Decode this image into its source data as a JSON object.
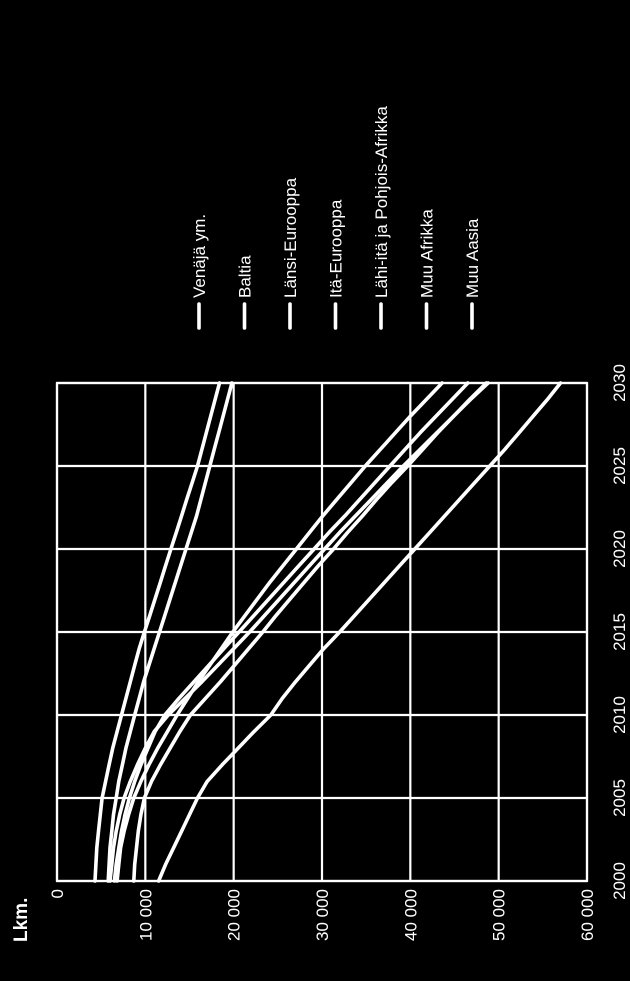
{
  "chart_data": {
    "type": "line",
    "orientation": "rotated-90-ccw",
    "y_unit_label": "Lkm.",
    "x": [
      2000,
      2001,
      2002,
      2003,
      2004,
      2005,
      2006,
      2007,
      2008,
      2009,
      2010,
      2011,
      2012,
      2013,
      2014,
      2015,
      2016,
      2017,
      2018,
      2019,
      2020,
      2021,
      2022,
      2023,
      2024,
      2025,
      2026,
      2027,
      2028,
      2029,
      2030
    ],
    "x_ticks": [
      "2000",
      "2005",
      "2010",
      "2015",
      "2020",
      "2025",
      "2030"
    ],
    "y_ticks": [
      "0",
      "10 000",
      "20 000",
      "30 000",
      "40 000",
      "50 000",
      "60 000"
    ],
    "xlim": [
      2000,
      2030
    ],
    "ylim": [
      0,
      60000
    ],
    "grid": true,
    "legend_position": "top",
    "series": [
      {
        "name": "Venäjä ym.",
        "values": [
          11500,
          12300,
          13200,
          14100,
          15000,
          15900,
          17000,
          18700,
          20500,
          22300,
          24200,
          25500,
          27000,
          28600,
          30200,
          32000,
          33700,
          35400,
          37100,
          38800,
          40500,
          42200,
          43900,
          45600,
          47300,
          49000,
          50700,
          52300,
          53900,
          55500,
          57000
        ]
      },
      {
        "name": "Baltia",
        "values": [
          8700,
          8800,
          9000,
          9200,
          9500,
          9900,
          10700,
          11700,
          12800,
          13900,
          15100,
          16800,
          18500,
          20100,
          21700,
          23300,
          24800,
          26400,
          28000,
          29600,
          31300,
          32900,
          34600,
          36200,
          37900,
          39700,
          41400,
          43100,
          44900,
          46700,
          48600
        ]
      },
      {
        "name": "Länsi-Eurooppa",
        "values": [
          6800,
          7000,
          7200,
          7600,
          8100,
          8700,
          9500,
          10400,
          11400,
          12500,
          13600,
          14800,
          16000,
          17300,
          18600,
          19900,
          21300,
          22700,
          24100,
          25600,
          27100,
          28600,
          30100,
          31700,
          33300,
          34900,
          36600,
          38300,
          40000,
          41800,
          43600
        ]
      },
      {
        "name": "Itä-Eurooppa",
        "values": [
          6500,
          6700,
          7000,
          7300,
          7700,
          8200,
          8800,
          9500,
          10300,
          11100,
          12200,
          13800,
          15500,
          17200,
          18900,
          20600,
          22300,
          24000,
          25700,
          27400,
          29100,
          30800,
          32600,
          34300,
          36000,
          37700,
          39400,
          41100,
          42900,
          44700,
          46500
        ]
      },
      {
        "name": "Lähi-itä ja Pohjois-Afrikka",
        "values": [
          6000,
          6200,
          6400,
          6700,
          7100,
          7600,
          8300,
          9100,
          10000,
          11000,
          12600,
          14500,
          16400,
          18200,
          20000,
          21800,
          23500,
          25200,
          26900,
          28600,
          30300,
          32000,
          33800,
          35600,
          37400,
          39200,
          41100,
          43000,
          44900,
          46800,
          48800
        ]
      },
      {
        "name": "Muu Afrikka",
        "values": [
          5800,
          5900,
          6000,
          6200,
          6400,
          6700,
          7000,
          7400,
          7800,
          8300,
          8800,
          9300,
          9800,
          10400,
          11000,
          11600,
          12200,
          12800,
          13400,
          14000,
          14600,
          15200,
          15800,
          16300,
          16800,
          17300,
          17800,
          18300,
          18800,
          19300,
          19800
        ]
      },
      {
        "name": "Muu Aasia",
        "values": [
          4300,
          4400,
          4500,
          4700,
          4900,
          5100,
          5500,
          5900,
          6300,
          6800,
          7300,
          7800,
          8300,
          8800,
          9300,
          9900,
          10500,
          11100,
          11700,
          12300,
          12900,
          13500,
          14100,
          14700,
          15300,
          15900,
          16400,
          16900,
          17400,
          17900,
          18400
        ]
      }
    ]
  }
}
